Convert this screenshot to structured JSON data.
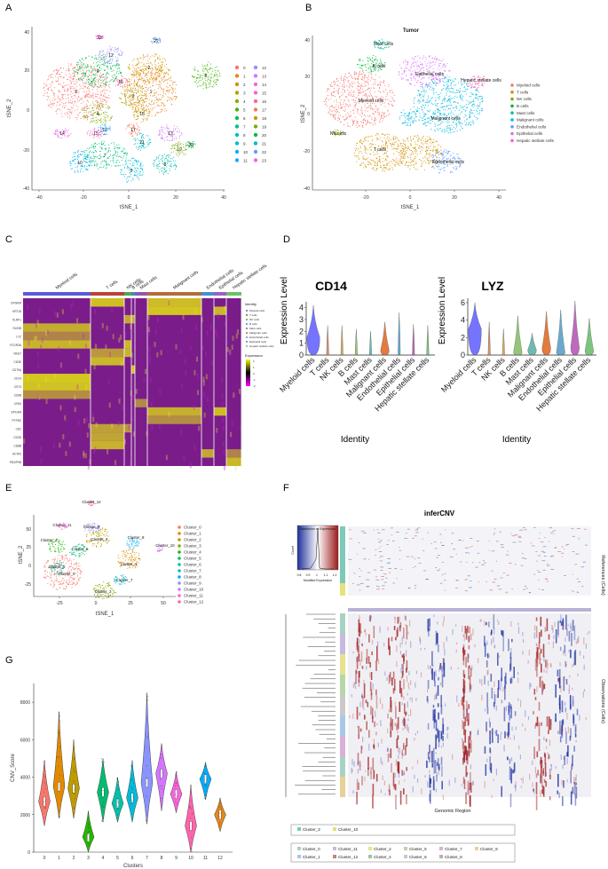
{
  "panels": {
    "A": {
      "label": "A",
      "xlabel": "tSNE_1",
      "ylabel": "tSNE_2",
      "xticks": [
        "-40",
        "-20",
        "0",
        "20",
        "40"
      ],
      "yticks": [
        "40",
        "20",
        "0",
        "-20",
        "-40"
      ],
      "legend_col1": [
        "0",
        "1",
        "2",
        "3",
        "4",
        "5",
        "6",
        "7",
        "8",
        "9",
        "10",
        "11"
      ],
      "legend_col2": [
        "12",
        "13",
        "14",
        "15",
        "16",
        "17",
        "18",
        "19",
        "20",
        "21",
        "22",
        "23"
      ],
      "cluster_labels": [
        "0",
        "1",
        "2",
        "3",
        "4",
        "5",
        "6",
        "7",
        "8",
        "9",
        "10",
        "11",
        "12",
        "13",
        "14",
        "15",
        "16",
        "17",
        "18",
        "19",
        "20",
        "21",
        "22",
        "23"
      ],
      "colors": [
        "#F8766D",
        "#E7851E",
        "#D09400",
        "#B2A100",
        "#89AC00",
        "#45B500",
        "#00BC51",
        "#00C087",
        "#00C0B2",
        "#00BCD6",
        "#00B3F2",
        "#29A3FF",
        "#9C8DFF",
        "#D277FF",
        "#F166E8",
        "#FF61C7",
        "#FF689E",
        "#F37B59",
        "#C99800",
        "#7CAE00",
        "#00BA38",
        "#00BFC4",
        "#619CFF",
        "#F564E3"
      ]
    },
    "B": {
      "label": "B",
      "title": "Tumor",
      "xlabel": "tSNE_1",
      "ylabel": "tSNE_2",
      "xticks": [
        "-20",
        "0",
        "20",
        "40"
      ],
      "yticks": [
        "40",
        "20",
        "0",
        "-20",
        "-40"
      ],
      "celltypes": [
        "Myeloid cells",
        "T cells",
        "NK cells",
        "B cells",
        "Mast cells",
        "Malignant cells",
        "Endothelial cells",
        "Epithelial cells",
        "Hepatic stellate cells"
      ],
      "colors": [
        "#F8766D",
        "#D39200",
        "#93AA00",
        "#00BA38",
        "#00C19F",
        "#00B9E3",
        "#619CFF",
        "#DB72FB",
        "#FF61C3"
      ],
      "cluster_texts": [
        "Mast cells",
        "B cells",
        "Epithelial cells",
        "Hepatic stellate cells",
        "Myeloid cells",
        "Malignant cells",
        "NK cells",
        "T cells",
        "Endothelial cells"
      ]
    },
    "C": {
      "label": "C",
      "groups": [
        "Myeloid cells",
        "T cells",
        "NK cells",
        "B cells",
        "Mast cells",
        "Malignant cells",
        "Endothelial cells",
        "Epithelial cells",
        "Hepatic stellate cells"
      ],
      "genes": [
        "DPGKM",
        "KRT18",
        "KLRF1",
        "S100B",
        "LYZ",
        "FCGR3A",
        "NKG7",
        "CD3E",
        "CD79A",
        "CD14",
        "CST3",
        "CD68",
        "CPA3",
        "EPCAM",
        "PTPRZ",
        "CD2",
        "CD3D",
        "CD8B",
        "ACTA2",
        "PDGFRB"
      ],
      "legend_title": "Identity",
      "expr_title": "Expression",
      "expr_ticks": [
        "2",
        "1",
        "0",
        "-1",
        "-2"
      ]
    },
    "D": {
      "label": "D",
      "ylabel": "Expression Level",
      "xlabel": "Identity",
      "categories": [
        "Myeloid cells",
        "T cells",
        "NK cells",
        "B cells",
        "Mast cells",
        "Malignant cells",
        "Endothelial cells",
        "Epithelial cells",
        "Hepatic stellate cells"
      ],
      "cd14": {
        "title": "CD14",
        "yticks": [
          "4",
          "3",
          "2",
          "1",
          "0"
        ]
      },
      "lyz": {
        "title": "LYZ",
        "yticks": [
          "6",
          "4",
          "2",
          "0"
        ]
      }
    },
    "E": {
      "label": "E",
      "xlabel": "tSNE_1",
      "ylabel": "tSNE_2",
      "xticks": [
        "-25",
        "0",
        "25",
        "50"
      ],
      "yticks": [
        "50",
        "25",
        "0",
        "-25"
      ],
      "legend": [
        "Cluster_0",
        "Cluster_1",
        "Cluster_2",
        "Cluster_3",
        "Cluster_4",
        "Cluster_5",
        "Cluster_6",
        "Cluster_7",
        "Cluster_8",
        "Cluster_9",
        "Cluster_10",
        "Cluster_11",
        "Cluster_12"
      ],
      "colors": [
        "#F8766D",
        "#E18A00",
        "#BE9C00",
        "#8CAB00",
        "#24B700",
        "#00BE70",
        "#00C1AB",
        "#00BBDA",
        "#00ACFC",
        "#8B93FF",
        "#D575FE",
        "#F962DD",
        "#FF65AC"
      ]
    },
    "F": {
      "label": "F",
      "title": "inferCNV",
      "key_title": "Distribution of Expression",
      "key_ylabel": "Count",
      "key_xlabel": "Modified Expression",
      "key_ticks": [
        "0.8",
        "0.9",
        "1",
        "1.1",
        "1.2"
      ],
      "ref_label": "References (Cells)",
      "obs_label": "Observations (Cells)",
      "xlabel": "Genomic Region",
      "ref_legend": [
        "Cluster_3",
        "Cluster_10"
      ],
      "obs_legend": [
        "Cluster_0",
        "Cluster_11",
        "Cluster_2",
        "Cluster_5",
        "Cluster_7",
        "Cluster_9",
        "Cluster_1",
        "Cluster_12",
        "Cluster_4",
        "Cluster_6",
        "Cluster_8"
      ]
    },
    "G": {
      "label": "G",
      "xlabel": "Clusters",
      "ylabel": "CNV_Score",
      "yticks": [
        "8000",
        "6000",
        "4000",
        "2000",
        "0"
      ]
    }
  },
  "chart_data": [
    {
      "type": "violin",
      "panel": "D-CD14",
      "title": "CD14",
      "categories": [
        "Myeloid cells",
        "T cells",
        "NK cells",
        "B cells",
        "Mast cells",
        "Malignant cells",
        "Endothelial cells",
        "Epithelial cells",
        "Hepatic stellate cells"
      ],
      "max_values": [
        4.2,
        2.5,
        2.5,
        2.2,
        2.0,
        2.8,
        3.6,
        2.6,
        2.5
      ],
      "median_values": [
        1.5,
        0,
        0,
        0,
        0,
        0.4,
        0.2,
        0,
        0
      ],
      "ylabel": "Expression Level",
      "xlabel": "Identity",
      "ylim": [
        0,
        4.5
      ]
    },
    {
      "type": "violin",
      "panel": "D-LYZ",
      "title": "LYZ",
      "categories": [
        "Myeloid cells",
        "T cells",
        "NK cells",
        "B cells",
        "Mast cells",
        "Malignant cells",
        "Endothelial cells",
        "Epithelial cells",
        "Hepatic stellate cells"
      ],
      "max_values": [
        6.0,
        3.8,
        3.0,
        4.5,
        2.5,
        5.0,
        5.2,
        6.2,
        4.2
      ],
      "median_values": [
        3.0,
        0,
        0,
        0.3,
        0.6,
        0.8,
        0.3,
        0.9,
        0.5
      ],
      "ylabel": "Expression Level",
      "xlabel": "Identity",
      "ylim": [
        0,
        6.5
      ]
    },
    {
      "type": "violin",
      "panel": "G",
      "xlabel": "Clusters",
      "ylabel": "CNV_Score",
      "categories": [
        "0",
        "1",
        "2",
        "3",
        "4",
        "5",
        "6",
        "7",
        "8",
        "9",
        "10",
        "11",
        "12"
      ],
      "medians": [
        2700,
        3500,
        3400,
        800,
        3200,
        2600,
        2900,
        3700,
        4200,
        3100,
        1400,
        3900,
        2000
      ],
      "max_values": [
        4900,
        7500,
        6000,
        2200,
        5000,
        4000,
        4900,
        8500,
        5800,
        4300,
        3600,
        4800,
        2900
      ],
      "min_values": [
        1400,
        1800,
        1800,
        0,
        1600,
        1600,
        1600,
        1500,
        2200,
        2100,
        0,
        2800,
        1100
      ],
      "colors": [
        "#F8766D",
        "#E18A00",
        "#BE9C00",
        "#24B700",
        "#00BE70",
        "#00C1AB",
        "#00BBDA",
        "#8B93FF",
        "#D575FE",
        "#F962DD",
        "#FF65AC",
        "#00ACFC",
        "#E7861B"
      ],
      "ylim": [
        0,
        9000
      ]
    }
  ]
}
